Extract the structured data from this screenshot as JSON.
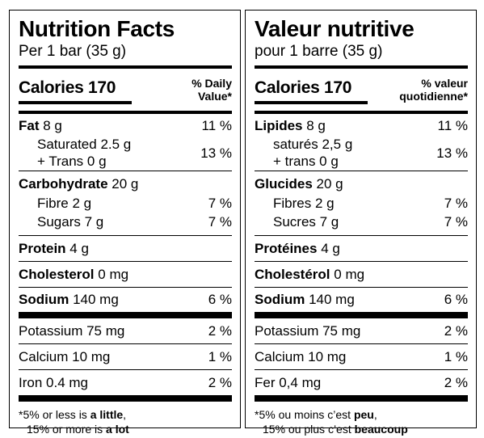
{
  "en": {
    "title": "Nutrition Facts",
    "serving": "Per 1 bar (35 g)",
    "calories_label": "Calories",
    "calories_value": "170",
    "dv_line1": "% Daily",
    "dv_line2": "Value*",
    "fat_label": "Fat",
    "fat_amount": "8 g",
    "fat_pct": "11 %",
    "saturated": "Saturated 2.5 g",
    "trans": "+ Trans 0 g",
    "sat_trans_pct": "13 %",
    "carb_label": "Carbohydrate",
    "carb_amount": "20 g",
    "fibre": "Fibre 2 g",
    "fibre_pct": "7 %",
    "sugars": "Sugars 7 g",
    "sugars_pct": "7 %",
    "protein_label": "Protein",
    "protein_amount": "4 g",
    "chol_label": "Cholesterol",
    "chol_amount": "0 mg",
    "sodium_label": "Sodium",
    "sodium_amount": "140 mg",
    "sodium_pct": "6 %",
    "potassium": "Potassium 75 mg",
    "potassium_pct": "2 %",
    "calcium": "Calcium 10 mg",
    "calcium_pct": "1 %",
    "iron": "Iron 0.4 mg",
    "iron_pct": "2 %",
    "fn_star": "*",
    "fn1_pre": "5% or less is ",
    "fn1_bold": "a little",
    "fn1_post": ",",
    "fn2_pre": "15% or more is ",
    "fn2_bold": "a lot"
  },
  "fr": {
    "title": "Valeur nutritive",
    "serving": "pour 1 barre (35 g)",
    "calories_label": "Calories",
    "calories_value": "170",
    "dv_line1": "% valeur",
    "dv_line2": "quotidienne*",
    "fat_label": "Lipides",
    "fat_amount": "8 g",
    "fat_pct": "11 %",
    "saturated": "saturés 2,5 g",
    "trans": "+ trans 0 g",
    "sat_trans_pct": "13 %",
    "carb_label": "Glucides",
    "carb_amount": "20 g",
    "fibre": "Fibres 2 g",
    "fibre_pct": "7 %",
    "sugars": "Sucres 7 g",
    "sugars_pct": "7 %",
    "protein_label": "Protéines",
    "protein_amount": "4 g",
    "chol_label": "Cholestérol",
    "chol_amount": "0 mg",
    "sodium_label": "Sodium",
    "sodium_amount": "140 mg",
    "sodium_pct": "6 %",
    "potassium": "Potassium 75 mg",
    "potassium_pct": "2 %",
    "calcium": "Calcium 10 mg",
    "calcium_pct": "1 %",
    "iron": "Fer 0,4 mg",
    "iron_pct": "2 %",
    "fn_star": "*",
    "fn1_pre": "5% ou moins c’est ",
    "fn1_bold": "peu",
    "fn1_post": ",",
    "fn2_pre": "15% ou plus c’est ",
    "fn2_bold": "beaucoup"
  }
}
